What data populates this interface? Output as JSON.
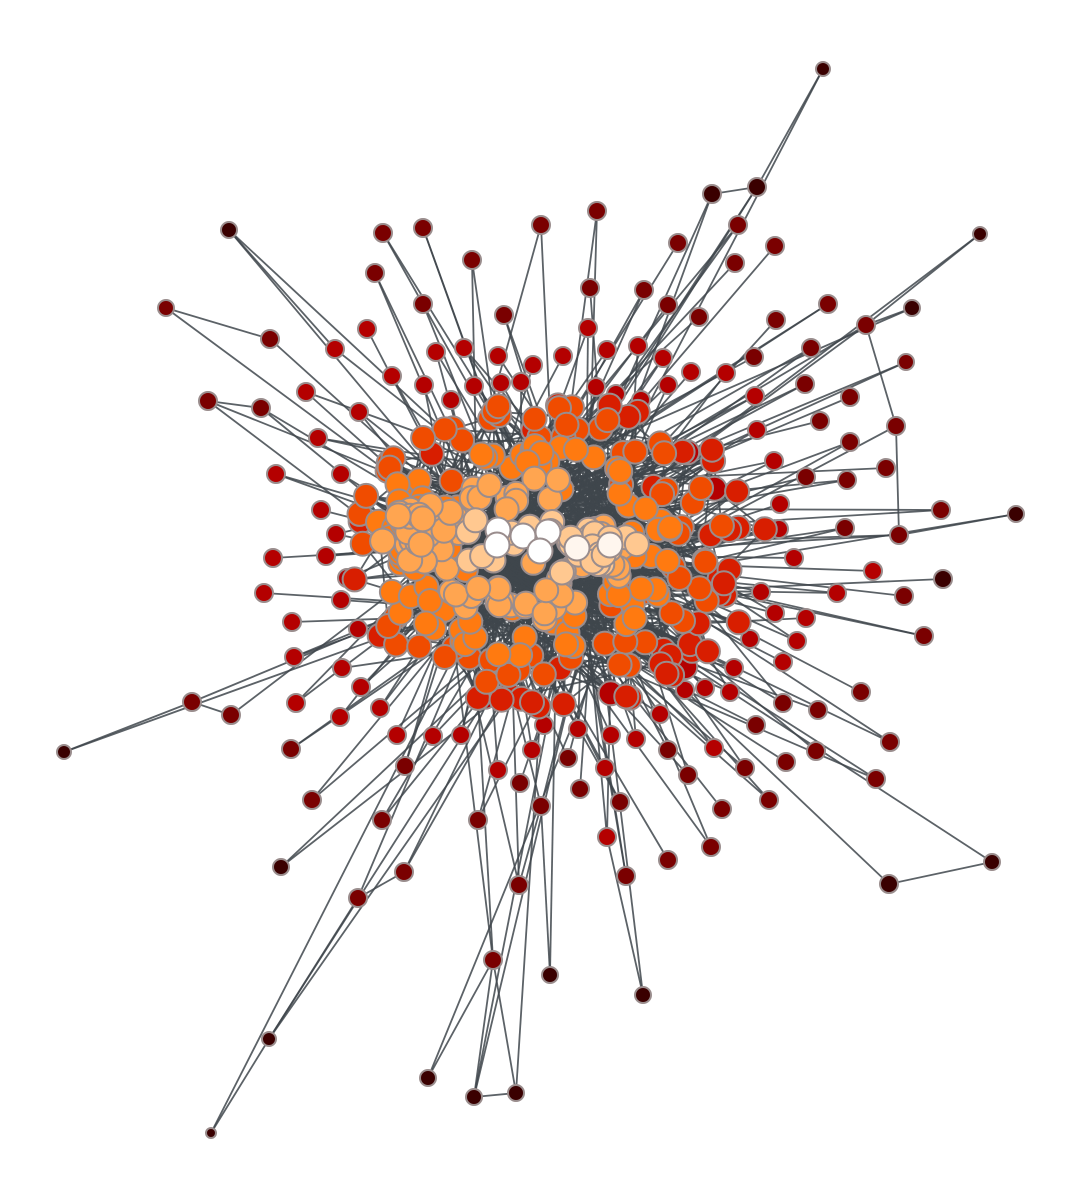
{
  "graph": {
    "background": "#ffffff",
    "edge_color": "#3f474c",
    "node_outline_color": "#9a8d8d",
    "colormap": [
      "#3a0000",
      "#7a0000",
      "#b40000",
      "#d81e00",
      "#f04c00",
      "#ff7a10",
      "#ffa550",
      "#ffc890",
      "#fff6ee",
      "#ffffff"
    ]
  }
}
